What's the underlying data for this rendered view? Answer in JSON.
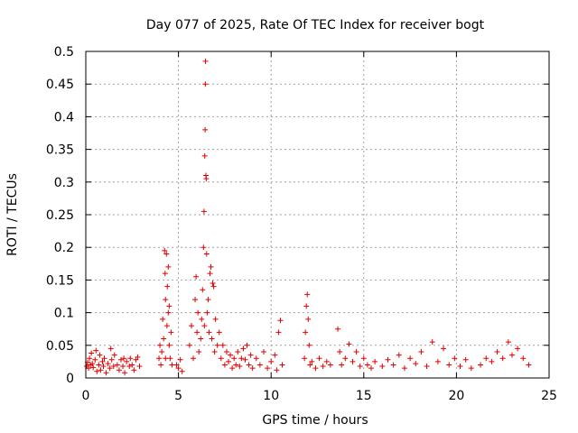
{
  "chart_data": {
    "type": "scatter",
    "title": "Day 077 of 2025, Rate Of TEC Index for receiver bogt",
    "xlabel": "GPS time / hours",
    "ylabel": "ROTI / TECUs",
    "xlim": [
      0,
      25
    ],
    "ylim": [
      0,
      0.5
    ],
    "xticks": [
      0,
      5,
      10,
      15,
      20,
      25
    ],
    "xtick_labels": [
      "0",
      "5",
      "10",
      "15",
      "20",
      "25"
    ],
    "yticks": [
      0,
      0.05,
      0.1,
      0.15,
      0.2,
      0.25,
      0.3,
      0.35,
      0.4,
      0.45,
      0.5
    ],
    "ytick_labels": [
      "0",
      "0.05",
      "0.1",
      "0.15",
      "0.2",
      "0.25",
      "0.3",
      "0.35",
      "0.4",
      "0.45",
      "0.5"
    ],
    "grid": true,
    "marker": "+",
    "color": "#e00000",
    "series": [
      {
        "name": "ROTI",
        "points": [
          [
            0.05,
            0.018
          ],
          [
            0.1,
            0.024
          ],
          [
            0.15,
            0.015
          ],
          [
            0.2,
            0.03
          ],
          [
            0.25,
            0.02
          ],
          [
            0.3,
            0.038
          ],
          [
            0.35,
            0.022
          ],
          [
            0.4,
            0.016
          ],
          [
            0.5,
            0.028
          ],
          [
            0.55,
            0.042
          ],
          [
            0.6,
            0.01
          ],
          [
            0.7,
            0.02
          ],
          [
            0.75,
            0.035
          ],
          [
            0.8,
            0.012
          ],
          [
            0.9,
            0.025
          ],
          [
            0.95,
            0.018
          ],
          [
            1.0,
            0.03
          ],
          [
            1.1,
            0.008
          ],
          [
            1.2,
            0.022
          ],
          [
            1.3,
            0.015
          ],
          [
            1.35,
            0.045
          ],
          [
            1.4,
            0.028
          ],
          [
            1.5,
            0.018
          ],
          [
            1.55,
            0.035
          ],
          [
            1.7,
            0.02
          ],
          [
            1.8,
            0.012
          ],
          [
            1.9,
            0.028
          ],
          [
            2.0,
            0.018
          ],
          [
            2.05,
            0.03
          ],
          [
            2.1,
            0.008
          ],
          [
            2.2,
            0.025
          ],
          [
            2.35,
            0.018
          ],
          [
            2.4,
            0.03
          ],
          [
            2.5,
            0.02
          ],
          [
            2.6,
            0.012
          ],
          [
            2.7,
            0.028
          ],
          [
            2.8,
            0.032
          ],
          [
            2.9,
            0.018
          ],
          [
            3.95,
            0.03
          ],
          [
            4.0,
            0.05
          ],
          [
            4.05,
            0.02
          ],
          [
            4.1,
            0.04
          ],
          [
            4.15,
            0.09
          ],
          [
            4.2,
            0.06
          ],
          [
            4.25,
            0.195
          ],
          [
            4.28,
            0.16
          ],
          [
            4.3,
            0.12
          ],
          [
            4.35,
            0.19
          ],
          [
            4.38,
            0.08
          ],
          [
            4.4,
            0.14
          ],
          [
            4.45,
            0.1
          ],
          [
            4.5,
            0.05
          ],
          [
            4.55,
            0.03
          ],
          [
            4.6,
            0.07
          ],
          [
            4.65,
            0.02
          ],
          [
            4.5,
            0.11
          ],
          [
            4.45,
            0.17
          ],
          [
            4.3,
            0.03
          ],
          [
            4.9,
            0.02
          ],
          [
            5.0,
            0.015
          ],
          [
            5.1,
            0.028
          ],
          [
            5.2,
            0.01
          ],
          [
            5.6,
            0.05
          ],
          [
            5.7,
            0.08
          ],
          [
            5.8,
            0.03
          ],
          [
            5.9,
            0.12
          ],
          [
            5.95,
            0.155
          ],
          [
            6.0,
            0.07
          ],
          [
            6.05,
            0.1
          ],
          [
            6.1,
            0.04
          ],
          [
            6.2,
            0.06
          ],
          [
            6.25,
            0.09
          ],
          [
            6.3,
            0.135
          ],
          [
            6.35,
            0.2
          ],
          [
            6.38,
            0.255
          ],
          [
            6.4,
            0.08
          ],
          [
            6.42,
            0.34
          ],
          [
            6.44,
            0.38
          ],
          [
            6.45,
            0.45
          ],
          [
            6.46,
            0.485
          ],
          [
            6.48,
            0.31
          ],
          [
            6.5,
            0.305
          ],
          [
            6.52,
            0.19
          ],
          [
            6.55,
            0.1
          ],
          [
            6.6,
            0.12
          ],
          [
            6.65,
            0.07
          ],
          [
            6.7,
            0.16
          ],
          [
            6.75,
            0.17
          ],
          [
            6.8,
            0.06
          ],
          [
            6.85,
            0.145
          ],
          [
            6.9,
            0.14
          ],
          [
            6.95,
            0.04
          ],
          [
            7.0,
            0.09
          ],
          [
            7.1,
            0.05
          ],
          [
            7.2,
            0.07
          ],
          [
            7.3,
            0.03
          ],
          [
            7.4,
            0.05
          ],
          [
            7.5,
            0.02
          ],
          [
            7.6,
            0.04
          ],
          [
            7.7,
            0.025
          ],
          [
            7.8,
            0.035
          ],
          [
            7.9,
            0.015
          ],
          [
            8.0,
            0.03
          ],
          [
            8.1,
            0.02
          ],
          [
            8.2,
            0.04
          ],
          [
            8.3,
            0.018
          ],
          [
            8.4,
            0.03
          ],
          [
            8.5,
            0.045
          ],
          [
            8.6,
            0.028
          ],
          [
            8.7,
            0.05
          ],
          [
            8.8,
            0.02
          ],
          [
            8.9,
            0.035
          ],
          [
            9.0,
            0.015
          ],
          [
            9.2,
            0.03
          ],
          [
            9.4,
            0.02
          ],
          [
            9.6,
            0.04
          ],
          [
            9.8,
            0.015
          ],
          [
            10.0,
            0.025
          ],
          [
            10.2,
            0.035
          ],
          [
            10.3,
            0.012
          ],
          [
            10.4,
            0.07
          ],
          [
            10.5,
            0.088
          ],
          [
            10.6,
            0.02
          ],
          [
            11.8,
            0.03
          ],
          [
            11.85,
            0.07
          ],
          [
            11.9,
            0.11
          ],
          [
            11.95,
            0.128
          ],
          [
            12.0,
            0.09
          ],
          [
            12.05,
            0.05
          ],
          [
            12.1,
            0.02
          ],
          [
            12.2,
            0.025
          ],
          [
            12.4,
            0.015
          ],
          [
            12.6,
            0.03
          ],
          [
            12.8,
            0.018
          ],
          [
            13.0,
            0.025
          ],
          [
            13.2,
            0.02
          ],
          [
            13.6,
            0.075
          ],
          [
            13.7,
            0.04
          ],
          [
            13.8,
            0.02
          ],
          [
            14.0,
            0.03
          ],
          [
            14.2,
            0.052
          ],
          [
            14.4,
            0.025
          ],
          [
            14.6,
            0.04
          ],
          [
            14.8,
            0.018
          ],
          [
            15.0,
            0.03
          ],
          [
            15.2,
            0.02
          ],
          [
            15.4,
            0.015
          ],
          [
            15.6,
            0.025
          ],
          [
            16.0,
            0.018
          ],
          [
            16.3,
            0.028
          ],
          [
            16.6,
            0.02
          ],
          [
            16.9,
            0.035
          ],
          [
            17.2,
            0.015
          ],
          [
            17.5,
            0.03
          ],
          [
            17.8,
            0.022
          ],
          [
            18.1,
            0.04
          ],
          [
            18.4,
            0.018
          ],
          [
            18.7,
            0.055
          ],
          [
            19.0,
            0.025
          ],
          [
            19.3,
            0.045
          ],
          [
            19.6,
            0.02
          ],
          [
            19.9,
            0.03
          ],
          [
            20.2,
            0.018
          ],
          [
            20.5,
            0.028
          ],
          [
            20.8,
            0.015
          ],
          [
            21.3,
            0.02
          ],
          [
            21.6,
            0.03
          ],
          [
            21.9,
            0.025
          ],
          [
            22.2,
            0.04
          ],
          [
            22.5,
            0.03
          ],
          [
            22.8,
            0.055
          ],
          [
            23.0,
            0.035
          ],
          [
            23.3,
            0.045
          ],
          [
            23.6,
            0.03
          ],
          [
            23.9,
            0.02
          ]
        ]
      }
    ]
  }
}
